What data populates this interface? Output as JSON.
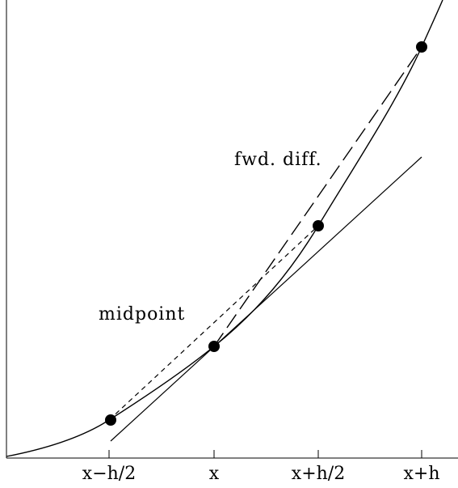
{
  "diagram": {
    "annotations": {
      "forward_difference": "fwd. diff.",
      "midpoint": "midpoint"
    },
    "ticks": [
      {
        "id": "x-minus-h-half",
        "label": "x−h/2"
      },
      {
        "id": "x",
        "label": "x"
      },
      {
        "id": "x-plus-h-half",
        "label": "x+h/2"
      },
      {
        "id": "x-plus-h",
        "label": "x+h"
      }
    ],
    "points": [
      {
        "id": "x-minus-h-half"
      },
      {
        "id": "x"
      },
      {
        "id": "x-plus-h-half"
      },
      {
        "id": "x-plus-h"
      }
    ]
  }
}
